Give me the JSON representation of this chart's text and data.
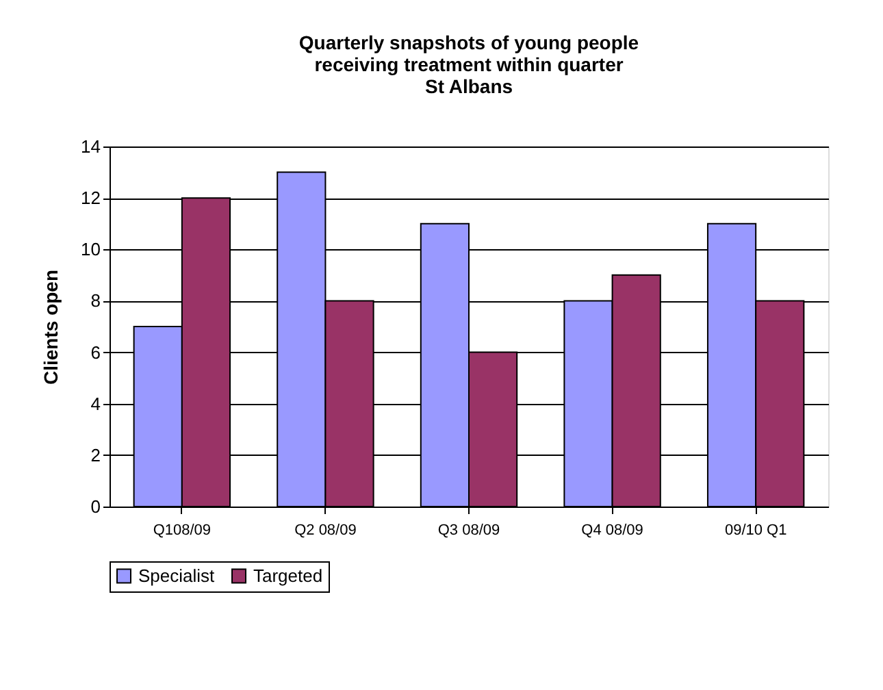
{
  "chart_data": {
    "type": "bar",
    "title": "Quarterly snapshots of young people receiving treatment within quarter",
    "subtitle": "St Albans",
    "ylabel": "Clients open",
    "categories": [
      "Q108/09",
      "Q2 08/09",
      "Q3 08/09",
      "Q4 08/09",
      "09/10 Q1"
    ],
    "series": [
      {
        "name": "Specialist",
        "color": "#9999ff",
        "values": [
          7,
          13,
          11,
          8,
          11
        ]
      },
      {
        "name": "Targeted",
        "color": "#993366",
        "values": [
          12,
          8,
          6,
          9,
          8
        ]
      }
    ],
    "ylim": [
      0,
      14
    ],
    "yticks": [
      0,
      2,
      4,
      6,
      8,
      10,
      12,
      14
    ],
    "grid": "y",
    "legend": "bottom"
  }
}
